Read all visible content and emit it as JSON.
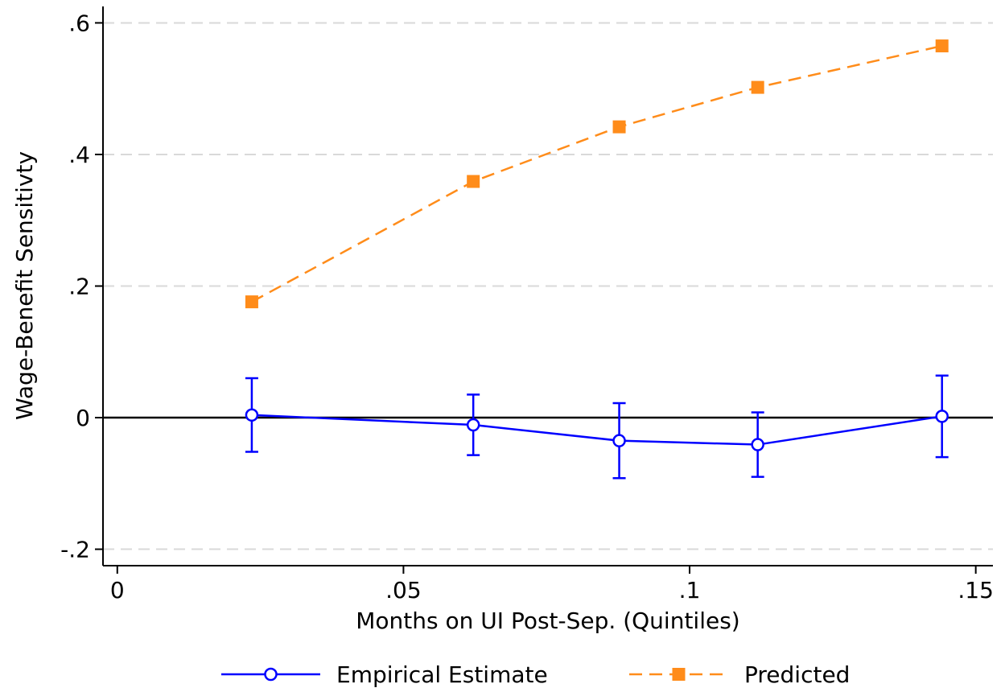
{
  "chart_data": {
    "type": "line",
    "title": "",
    "xlabel": "Months on UI Post-Sep. (Quintiles)",
    "ylabel": "Wage-Benefit Sensitivty",
    "xlim": [
      -0.0025,
      0.153
    ],
    "ylim": [
      -0.225,
      0.625
    ],
    "x_ticks": [
      {
        "value": 0,
        "label": "0"
      },
      {
        "value": 0.05,
        "label": ".05"
      },
      {
        "value": 0.1,
        "label": ".1"
      },
      {
        "value": 0.15,
        "label": ".15"
      }
    ],
    "y_ticks": [
      {
        "value": -0.2,
        "label": "-.2"
      },
      {
        "value": 0,
        "label": "0"
      },
      {
        "value": 0.2,
        "label": ".2"
      },
      {
        "value": 0.4,
        "label": ".4"
      },
      {
        "value": 0.6,
        "label": ".6"
      }
    ],
    "grid": {
      "horizontal": true,
      "style": "dashed",
      "color": "#d9d9d9"
    },
    "reference_line_y": 0,
    "legend": {
      "position": "bottom"
    },
    "series": [
      {
        "name": "Empirical Estimate",
        "color": "#0000ff",
        "line_style": "solid",
        "marker": "hollow-circle",
        "x": [
          0.0235,
          0.0622,
          0.0877,
          0.1119,
          0.1441
        ],
        "y": [
          0.004,
          -0.011,
          -0.035,
          -0.041,
          0.002
        ],
        "ci_low": [
          -0.052,
          -0.057,
          -0.092,
          -0.09,
          -0.06
        ],
        "ci_high": [
          0.06,
          0.035,
          0.022,
          0.008,
          0.064
        ]
      },
      {
        "name": "Predicted",
        "color": "#ff8c1a",
        "line_style": "dashed",
        "marker": "filled-square",
        "x": [
          0.0235,
          0.0622,
          0.0877,
          0.1119,
          0.1441
        ],
        "y": [
          0.176,
          0.359,
          0.442,
          0.502,
          0.565
        ]
      }
    ]
  }
}
